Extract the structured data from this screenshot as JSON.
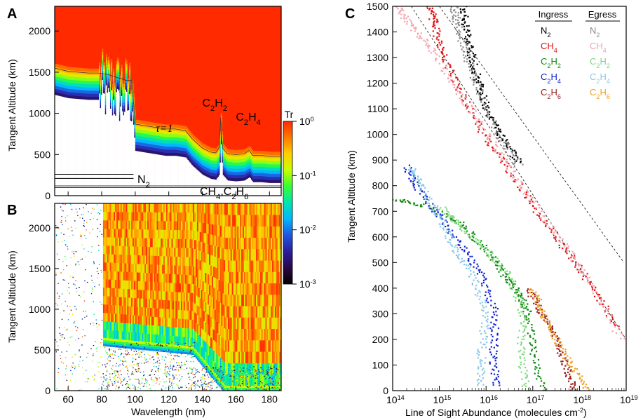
{
  "panels": {
    "a": "A",
    "b": "B",
    "c": "C"
  },
  "chart_data": [
    {
      "panel": "A",
      "type": "heatmap",
      "xlabel": "",
      "ylabel": "Tangent Altitude (km)",
      "xlim": [
        52,
        187
      ],
      "ylim": [
        0,
        2300
      ],
      "xticks": [
        "60",
        "80",
        "100",
        "120",
        "140",
        "160",
        "180"
      ],
      "yticks": [
        "0",
        "500",
        "1000",
        "1500",
        "2000"
      ],
      "colorbar": {
        "title": "Tr",
        "log": true,
        "range": [
          0.001,
          1
        ],
        "ticks": [
          {
            "base": "10",
            "exp": "0"
          },
          {
            "base": "10",
            "exp": "-1"
          },
          {
            "base": "10",
            "exp": "-2"
          },
          {
            "base": "10",
            "exp": "-3"
          }
        ],
        "colors": [
          "#000000",
          "#2a0845",
          "#2b1d9a",
          "#1f55e0",
          "#00b7ff",
          "#00e5b0",
          "#33ff33",
          "#c8ff00",
          "#ffd000",
          "#ff7a00",
          "#ff2a00"
        ]
      },
      "tau_label": "τ=1",
      "tau1_altitude": [
        [
          52,
          1300
        ],
        [
          60,
          1260
        ],
        [
          66,
          1250
        ],
        [
          72,
          1240
        ],
        [
          78,
          1240
        ],
        [
          84,
          1220
        ],
        [
          90,
          1180
        ],
        [
          95,
          1150
        ],
        [
          98,
          1150
        ],
        [
          100,
          620
        ],
        [
          106,
          600
        ],
        [
          112,
          580
        ],
        [
          118,
          560
        ],
        [
          124,
          560
        ],
        [
          130,
          540
        ],
        [
          134,
          440
        ],
        [
          140,
          330
        ],
        [
          145,
          280
        ],
        [
          148,
          270
        ],
        [
          150,
          330
        ],
        [
          151,
          700
        ],
        [
          152,
          330
        ],
        [
          155,
          260
        ],
        [
          160,
          250
        ],
        [
          165,
          260
        ],
        [
          168,
          300
        ],
        [
          170,
          240
        ],
        [
          175,
          240
        ],
        [
          180,
          230
        ],
        [
          187,
          230
        ]
      ],
      "annotations": [
        {
          "base": "C",
          "sub": "2",
          "tail": "H",
          "sub2": "2",
          "x": 150,
          "y": 1030
        },
        {
          "base": "C",
          "sub": "2",
          "tail": "H",
          "sub2": "4",
          "x": 170,
          "y": 860
        }
      ],
      "n2_label": {
        "base": "N",
        "sub": "2"
      },
      "n2_lines": [
        190,
        140
      ],
      "ch4_label": {
        "parts": [
          {
            "t": "CH"
          },
          {
            "s": "4"
          },
          {
            "t": ",C"
          },
          {
            "s": "2"
          },
          {
            "t": "H"
          },
          {
            "s": "6"
          }
        ]
      },
      "ch4_line": 100
    },
    {
      "panel": "B",
      "type": "heatmap",
      "xlabel": "Wavelength (nm)",
      "ylabel": "Tangent Altitude (km)",
      "xlim": [
        52,
        187
      ],
      "ylim": [
        0,
        2300
      ],
      "xticks": [
        "60",
        "80",
        "100",
        "120",
        "140",
        "160",
        "180"
      ],
      "yticks": [
        "0",
        "500",
        "1000",
        "1500",
        "2000"
      ]
    },
    {
      "panel": "C",
      "type": "scatter",
      "xlabel": "Line of Sight Abundance (molecules cm",
      "xlabel_exp": "-2",
      "ylabel": "Tangent Altitude (km)",
      "x_log": true,
      "xlim": [
        100000000000000.0,
        1e+19
      ],
      "ylim": [
        0,
        1500
      ],
      "xticks": [
        {
          "base": "10",
          "exp": "14"
        },
        {
          "base": "10",
          "exp": "15"
        },
        {
          "base": "10",
          "exp": "16"
        },
        {
          "base": "10",
          "exp": "17"
        },
        {
          "base": "10",
          "exp": "18"
        },
        {
          "base": "10",
          "exp": "19"
        }
      ],
      "yticks": [
        "0",
        "100",
        "200",
        "300",
        "400",
        "500",
        "600",
        "700",
        "800",
        "900",
        "1000",
        "1100",
        "1200",
        "1300",
        "1400",
        "1500"
      ],
      "legend": {
        "ingress_header": "Ingress",
        "egress_header": "Egress",
        "rows": [
          {
            "base": "N",
            "sub": "2",
            "ingress_color": "#000000",
            "egress_color": "#8c8c8c"
          },
          {
            "base": "CH",
            "sub": "4",
            "ingress_color": "#e01010",
            "egress_color": "#f4a3ad"
          },
          {
            "base": "C",
            "sub": "2",
            "tail": "H",
            "sub2": "2",
            "ingress_color": "#108a10",
            "egress_color": "#7ed87e"
          },
          {
            "base": "C",
            "sub": "2",
            "tail": "H",
            "sub2": "4",
            "ingress_color": "#1020d0",
            "egress_color": "#86c8e8"
          },
          {
            "base": "C",
            "sub": "2",
            "tail": "H",
            "sub2": "6",
            "ingress_color": "#9a1a1a",
            "egress_color": "#f0a020"
          }
        ]
      },
      "series": [
        {
          "species": "N2",
          "pass": "ingress",
          "color": "#000000",
          "points": [
            [
              16.7,
              890
            ],
            [
              16.3,
              1000
            ],
            [
              16.0,
              1100
            ],
            [
              15.85,
              1200
            ],
            [
              15.7,
              1300
            ],
            [
              15.6,
              1400
            ],
            [
              15.5,
              1500
            ]
          ]
        },
        {
          "species": "N2",
          "pass": "egress",
          "color": "#8c8c8c",
          "points": [
            [
              16.7,
              880
            ],
            [
              16.3,
              990
            ],
            [
              15.9,
              1150
            ],
            [
              15.6,
              1300
            ],
            [
              15.4,
              1420
            ],
            [
              15.3,
              1500
            ]
          ]
        },
        {
          "species": "CH4",
          "pass": "ingress",
          "color": "#e01010",
          "points": [
            [
              18.8,
              250
            ],
            [
              18.3,
              400
            ],
            [
              17.7,
              550
            ],
            [
              17.1,
              700
            ],
            [
              16.5,
              860
            ],
            [
              15.95,
              1000
            ],
            [
              15.5,
              1150
            ],
            [
              15.1,
              1300
            ],
            [
              14.9,
              1420
            ],
            [
              14.8,
              1500
            ]
          ]
        },
        {
          "species": "CH4",
          "pass": "egress",
          "color": "#f4a3ad",
          "points": [
            [
              18.9,
              200
            ],
            [
              18.3,
              400
            ],
            [
              17.7,
              560
            ],
            [
              17.1,
              710
            ],
            [
              16.5,
              870
            ],
            [
              15.95,
              1020
            ],
            [
              15.4,
              1170
            ],
            [
              14.9,
              1320
            ],
            [
              14.4,
              1420
            ],
            [
              14.1,
              1500
            ]
          ]
        },
        {
          "species": "C2H2",
          "pass": "ingress",
          "color": "#108a10",
          "points": [
            [
              17.2,
              0
            ],
            [
              17.0,
              150
            ],
            [
              16.9,
              300
            ],
            [
              16.7,
              380
            ],
            [
              16.4,
              450
            ],
            [
              16.0,
              550
            ],
            [
              15.5,
              650
            ],
            [
              14.7,
              720
            ],
            [
              14.0,
              750
            ]
          ]
        },
        {
          "species": "C2H2",
          "pass": "egress",
          "color": "#7ed87e",
          "points": [
            [
              16.85,
              0
            ],
            [
              16.75,
              150
            ],
            [
              16.8,
              300
            ],
            [
              16.5,
              450
            ],
            [
              16.0,
              550
            ],
            [
              15.4,
              650
            ],
            [
              15.0,
              720
            ]
          ]
        },
        {
          "species": "C2H4",
          "pass": "ingress",
          "color": "#1020d0",
          "points": [
            [
              16.2,
              20
            ],
            [
              16.15,
              150
            ],
            [
              16.2,
              300
            ],
            [
              15.9,
              450
            ],
            [
              15.5,
              560
            ],
            [
              15.0,
              680
            ],
            [
              14.5,
              800
            ],
            [
              14.3,
              880
            ]
          ]
        },
        {
          "species": "C2H4",
          "pass": "egress",
          "color": "#86c8e8",
          "points": [
            [
              15.9,
              20
            ],
            [
              15.9,
              150
            ],
            [
              16.0,
              300
            ],
            [
              15.7,
              450
            ],
            [
              15.3,
              560
            ],
            [
              15.0,
              680
            ],
            [
              14.6,
              800
            ],
            [
              14.4,
              870
            ]
          ]
        },
        {
          "species": "C2H6",
          "pass": "ingress",
          "color": "#9a1a1a",
          "points": [
            [
              17.9,
              0
            ],
            [
              17.7,
              100
            ],
            [
              17.5,
              200
            ],
            [
              17.2,
              300
            ],
            [
              16.9,
              400
            ]
          ]
        },
        {
          "species": "C2H6",
          "pass": "egress",
          "color": "#f0a020",
          "points": [
            [
              18.2,
              0
            ],
            [
              17.8,
              100
            ],
            [
              17.5,
              200
            ],
            [
              17.2,
              300
            ],
            [
              17.0,
              400
            ]
          ]
        }
      ],
      "fits": [
        {
          "species": "N2",
          "style": "dashed",
          "points": [
            [
              15.0,
              1500
            ],
            [
              18.95,
              500
            ]
          ]
        },
        {
          "species": "CH4",
          "style": "dashed",
          "points": [
            [
              14.4,
              1500
            ],
            [
              19.0,
              200
            ]
          ]
        }
      ]
    }
  ]
}
